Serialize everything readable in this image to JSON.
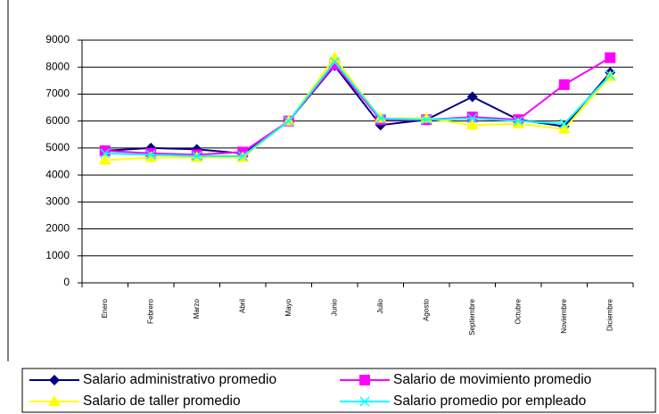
{
  "chart_data": {
    "type": "line",
    "categories": [
      "Enero",
      "Febrero",
      "Marzo",
      "Abril",
      "Mayo",
      "Junio",
      "Julio",
      "Agosto",
      "Septiembre",
      "Octubre",
      "Noviembre",
      "Diciembre"
    ],
    "series": [
      {
        "name": "Salario administrativo  promedio",
        "color": "#000080",
        "marker": "diamond",
        "values": [
          4900,
          5000,
          4950,
          4800,
          6000,
          8050,
          5850,
          6050,
          6900,
          6050,
          5800,
          7800
        ]
      },
      {
        "name": "Salario de movimiento promedio",
        "color": "#ff00ff",
        "marker": "square",
        "values": [
          4900,
          4800,
          4750,
          4850,
          6000,
          8100,
          6050,
          6050,
          6150,
          6050,
          7350,
          8350
        ]
      },
      {
        "name": "Salario de taller promedio",
        "color": "#ffff00",
        "marker": "triangle",
        "values": [
          4550,
          4650,
          4650,
          4650,
          6000,
          8350,
          6100,
          6100,
          5850,
          5900,
          5700,
          7650
        ]
      },
      {
        "name": "Salario promedio  por empleado",
        "color": "#00ffff",
        "marker": "x",
        "values": [
          4800,
          4750,
          4700,
          4700,
          6000,
          8200,
          6100,
          6050,
          6100,
          6000,
          5900,
          7700
        ]
      }
    ],
    "ylim": [
      0,
      9000
    ],
    "yticks": [
      0,
      1000,
      2000,
      3000,
      4000,
      5000,
      6000,
      7000,
      8000,
      9000
    ],
    "grid": true
  }
}
